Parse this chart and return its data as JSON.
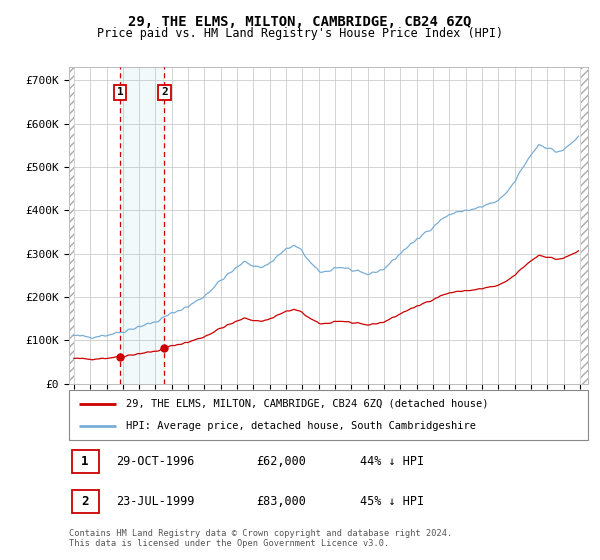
{
  "title": "29, THE ELMS, MILTON, CAMBRIDGE, CB24 6ZQ",
  "subtitle": "Price paid vs. HM Land Registry's House Price Index (HPI)",
  "ylim": [
    0,
    730000
  ],
  "yticks": [
    0,
    100000,
    200000,
    300000,
    400000,
    500000,
    600000,
    700000
  ],
  "ytick_labels": [
    "£0",
    "£100K",
    "£200K",
    "£300K",
    "£400K",
    "£500K",
    "£600K",
    "£700K"
  ],
  "hpi_color": "#7aaed6",
  "price_color": "#cc0000",
  "transaction1_date": 1996.83,
  "transaction1_price": 62000,
  "transaction2_date": 1999.55,
  "transaction2_price": 83000,
  "legend_hpi_label": "HPI: Average price, detached house, South Cambridgeshire",
  "legend_price_label": "29, THE ELMS, MILTON, CAMBRIDGE, CB24 6ZQ (detached house)",
  "table_rows": [
    {
      "num": "1",
      "date": "29-OCT-1996",
      "price": "£62,000",
      "note": "44% ↓ HPI"
    },
    {
      "num": "2",
      "date": "23-JUL-1999",
      "price": "£83,000",
      "note": "45% ↓ HPI"
    }
  ],
  "footnote": "Contains HM Land Registry data © Crown copyright and database right 2024.\nThis data is licensed under the Open Government Licence v3.0.",
  "grid_color": "#cccccc",
  "xlim_left": 1993.7,
  "xlim_right": 2025.5,
  "hatch_left_end": 1994.0,
  "hatch_right_start": 2025.1
}
